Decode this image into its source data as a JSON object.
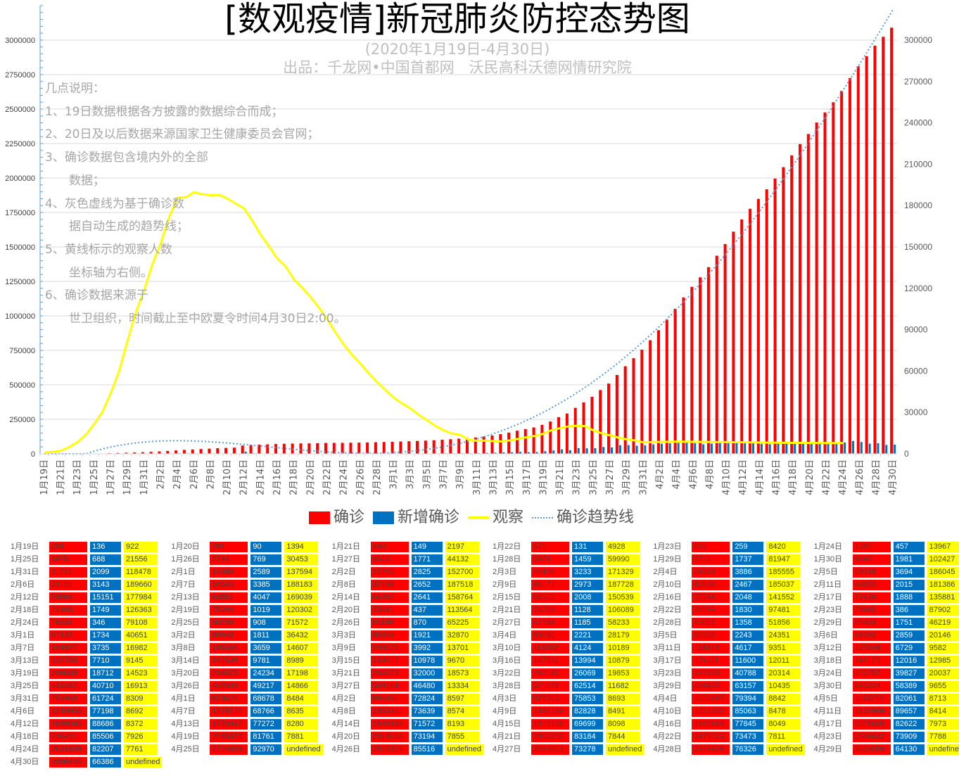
{
  "chart_data": {
    "type": "bar",
    "title": "[数观疫情]新冠肺炎防控态势图",
    "subtitle": "(2020年1月19日-4月30日)",
    "source": "出品：千龙网•中国首都网　沃民高科沃德网情研究院",
    "notes": [
      "几点说明：",
      "1、19日数据根据各方披露的数据综合而成；",
      "2、20日及以后数据来源国家卫生健康委员会官网；",
      "3、确诊数据包含境内外的全部",
      "　　数据；",
      "4、灰色虚线为基于确诊数",
      "　　据自动生成的趋势线；",
      "5、黄线标示的观察人数",
      "　　坐标轴为右侧。",
      "6、确诊数据来源于",
      "　　世卫组织，时间截止至中欧夏令时间4月30日2:00。"
    ],
    "start_date": "2020-01-19",
    "end_date": "2020-04-30",
    "left_axis": {
      "min": 0,
      "max": 3250000,
      "ticks": [
        0,
        250000,
        500000,
        750000,
        1000000,
        1250000,
        1500000,
        1750000,
        2000000,
        2250000,
        2500000,
        2750000,
        3000000
      ]
    },
    "right_axis": {
      "min": 0,
      "max": 325000,
      "ticks": [
        0,
        30000,
        60000,
        90000,
        120000,
        150000,
        180000,
        210000,
        240000,
        270000,
        300000
      ]
    },
    "grid": true,
    "legend_position": "bottom",
    "series": [
      {
        "name": "确诊",
        "kind": "bar",
        "axis": "left",
        "color": "#ff0000",
        "values": [
          201,
          291,
          440,
          571,
          830,
          1287,
          1975,
          2744,
          4515,
          5974,
          7711,
          9692,
          11791,
          14380,
          17205,
          20438,
          24324,
          28018,
          31161,
          34546,
          37198,
          40171,
          42638,
          44653,
          59804,
          63851,
          66492,
          68500,
          70548,
          72436,
          74185,
          75204,
          75641,
          76769,
          78599,
          78985,
          79331,
          80239,
          81109,
          82294,
          83652,
          85403,
          87137,
          88948,
          90869,
          93090,
          95333,
          98192,
          101927,
          105586,
          109578,
          113702,
          118319,
          125048,
          132758,
          142539,
          153517,
          167511,
          179111,
          191127,
          209839,
          234073,
          266073,
          292142,
          332930,
          372757,
          413467,
          462684,
          509164,
          571678,
          634835,
          693224,
          754948,
          823626,
          896450,
          972303,
          1051697,
          1133758,
          1210956,
          1279722,
          1353361,
          1436189,
          1521252,
          1610909,
          1699595,
          1776867,
          1848439,
          1918138,
          1995983,
          2078605,
          2164111,
          2245872,
          2319066,
          2402250,
          2475723,
          2549632,
          2631839,
          2724809,
          2810325,
          2883603,
          2959929,
          3024059,
          3090445
        ]
      },
      {
        "name": "新增确诊",
        "kind": "bar",
        "axis": "left",
        "color": "#0070c0",
        "values": [
          136,
          90,
          149,
          131,
          259,
          457,
          688,
          769,
          1771,
          1459,
          1737,
          1981,
          2099,
          2589,
          2825,
          3233,
          3886,
          3694,
          3143,
          3385,
          2652,
          2973,
          2467,
          2015,
          15151,
          4047,
          2641,
          2008,
          2048,
          1888,
          1749,
          1019,
          437,
          1128,
          1830,
          386,
          346,
          908,
          870,
          1185,
          1358,
          1751,
          1734,
          1811,
          1921,
          2221,
          2243,
          2859,
          3735,
          3659,
          3992,
          4124,
          4617,
          6729,
          7710,
          9781,
          10978,
          13994,
          11600,
          12016,
          18712,
          24234,
          32000,
          26069,
          40788,
          39827,
          40710,
          49217,
          46480,
          62514,
          63157,
          58389,
          61724,
          68678,
          72824,
          75853,
          79394,
          82061,
          77198,
          68766,
          73639,
          82828,
          85063,
          89657,
          88686,
          77272,
          71572,
          69699,
          77845,
          82622,
          85506,
          81761,
          73194,
          83184,
          73473,
          73909,
          82207,
          92970,
          85516,
          73278,
          76326,
          64130,
          66386
        ]
      },
      {
        "name": "观察",
        "kind": "line",
        "axis": "right",
        "color": "#ffff00",
        "values": [
          922,
          1394,
          2197,
          4928,
          8420,
          13967,
          21556,
          30453,
          44132,
          59990,
          81947,
          102427,
          118478,
          137594,
          152700,
          171329,
          185555,
          186045,
          189660,
          188183,
          187518,
          187728,
          185037,
          181386,
          177984,
          169039,
          158764,
          150539,
          141552,
          135881,
          126363,
          120302,
          113564,
          106089,
          97481,
          87902,
          79108,
          71572,
          65225,
          58233,
          51856,
          46219,
          40651,
          36432,
          32870,
          28179,
          24351,
          20146,
          16982,
          14607,
          13701,
          10189,
          9351,
          9582,
          9145,
          8989,
          9670,
          10879,
          12011,
          12985,
          14523,
          17198,
          18573,
          19853,
          20314,
          20037,
          16913,
          14866,
          13334,
          11682,
          10435,
          9655,
          8309,
          8484,
          8597,
          8693,
          8842,
          8713,
          8692,
          8635,
          8574,
          8491,
          8478,
          8414,
          8372,
          8280,
          8193,
          8098,
          8049,
          7973,
          7926,
          7881,
          7855,
          7844,
          7811,
          7788,
          7761
        ]
      },
      {
        "name": "确诊趋势线",
        "kind": "trendline",
        "of": "确诊",
        "color": "#5b9bd5"
      }
    ]
  }
}
